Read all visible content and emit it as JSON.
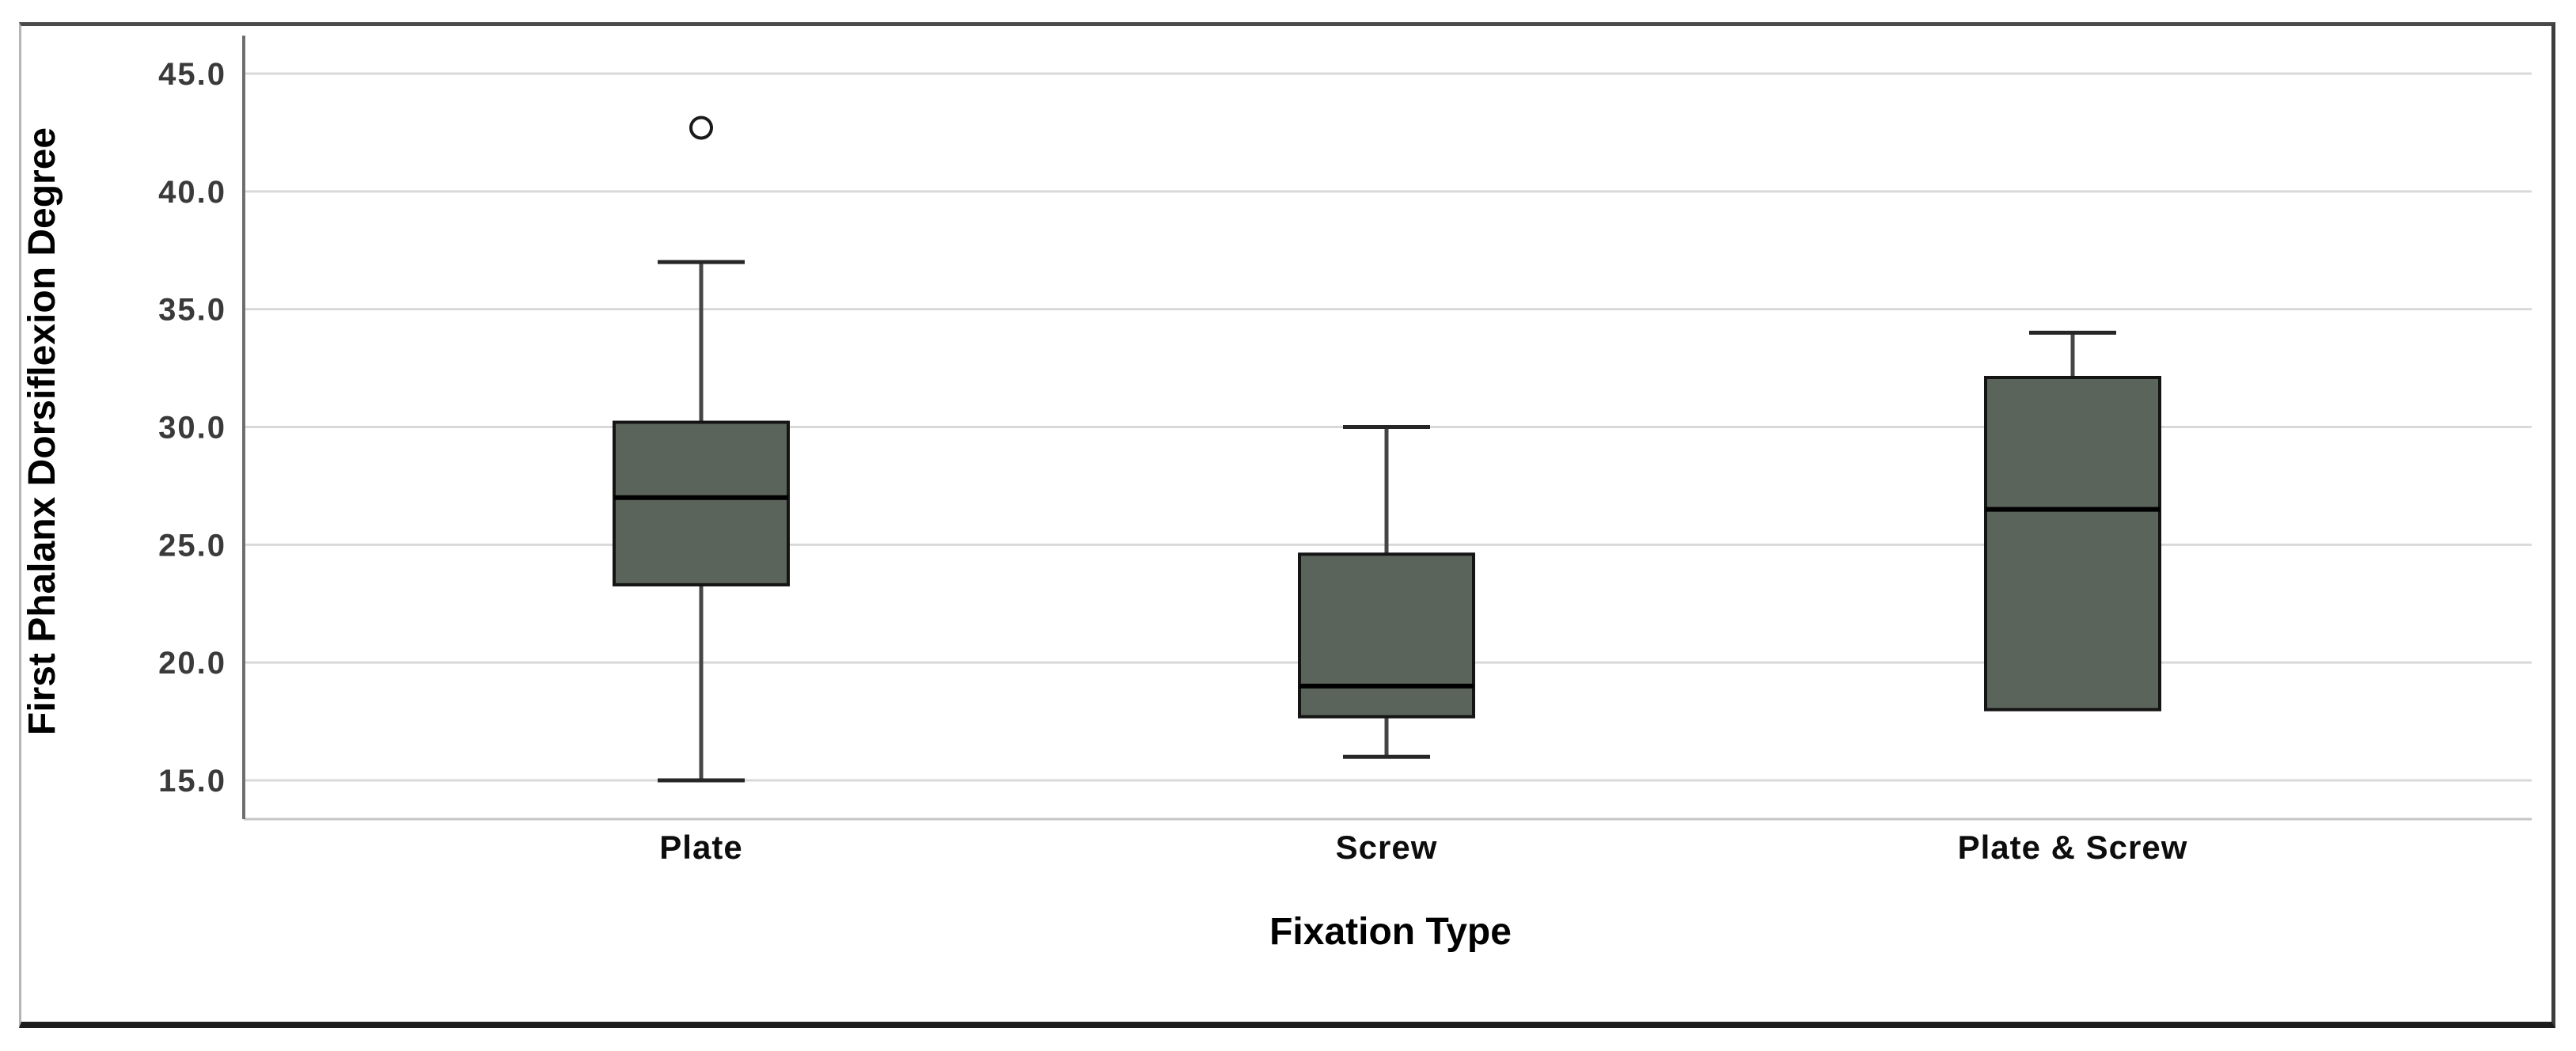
{
  "figure": {
    "ylabel": "First Phalanx Dorsiflexion Degree",
    "xlabel": "Fixation Type"
  },
  "chart_data": {
    "type": "boxplot",
    "title": "",
    "xlabel": "Fixation Type",
    "ylabel": "First Phalanx Dorsiflexion Degree",
    "categories": [
      "Plate",
      "Screw",
      "Plate & Screw"
    ],
    "boxes": [
      {
        "category": "Plate",
        "whisker_low": 15.0,
        "q1": 23.3,
        "median": 27.0,
        "q3": 30.2,
        "whisker_high": 37.0,
        "outliers": [
          42.7
        ]
      },
      {
        "category": "Screw",
        "whisker_low": 16.0,
        "q1": 17.7,
        "median": 19.0,
        "q3": 24.6,
        "whisker_high": 30.0,
        "outliers": []
      },
      {
        "category": "Plate & Screw",
        "whisker_low": 18.0,
        "q1": 18.0,
        "median": 26.5,
        "q3": 32.1,
        "whisker_high": 34.0,
        "outliers": []
      }
    ],
    "yticks": [
      15,
      20,
      25,
      30,
      35,
      40,
      45
    ],
    "ytick_labels": [
      "15.0",
      "20.0",
      "25.0",
      "30.0",
      "35.0",
      "40.0",
      "45.0"
    ],
    "ylim": [
      15,
      45
    ],
    "grid": true,
    "legend": "none",
    "colors": {
      "box_fill": "#5a645a",
      "box_border": "#141414",
      "median": "#000000",
      "whisker": "#454545",
      "whisker_cap": "#262626",
      "gridline": "#d9d9d9",
      "plot_floor": "#c6c6c6",
      "axis_line": "#6e6e6e",
      "tick_label": "#3a3a3a",
      "category_label": "#0d0d0d",
      "outlier_stroke": "#1a1a1a"
    }
  }
}
